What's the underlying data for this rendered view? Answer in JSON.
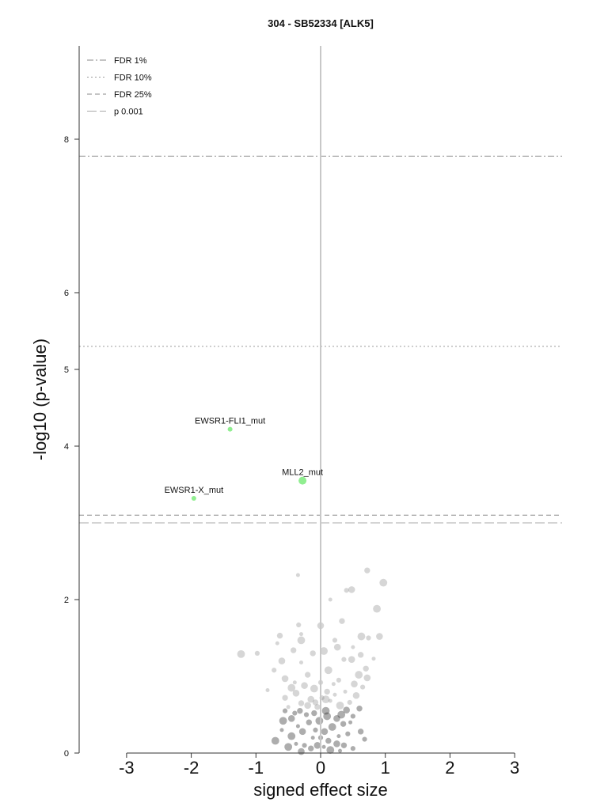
{
  "chart_data": {
    "type": "scatter",
    "title": "304 - SB52334 [ALK5]",
    "xlabel": "signed effect size",
    "ylabel": "-log10 (p-value)",
    "xlim": [
      -3.7,
      3.7
    ],
    "ylim": [
      0,
      9.2
    ],
    "xticks": [
      -3,
      -2,
      -1,
      0,
      1,
      2,
      3
    ],
    "xtick_labels": [
      "-3",
      "-2",
      "-1",
      "0",
      "1",
      "2",
      "3"
    ],
    "yticks": [
      0,
      2,
      4,
      5,
      6,
      8
    ],
    "ytick_labels": [
      "0",
      "2",
      "4",
      "5",
      "6",
      "8"
    ],
    "grid": false,
    "legend_position": "top-left",
    "legend": [
      {
        "label": "FDR 1%",
        "style": "dashdot",
        "y": 7.78
      },
      {
        "label": "FDR 10%",
        "style": "dotted",
        "y": 5.3
      },
      {
        "label": "FDR 25%",
        "style": "dashed",
        "y": 3.1
      },
      {
        "label": "p 0.001",
        "style": "longdash",
        "y": 3.0
      }
    ],
    "highlighted_points": [
      {
        "label": "EWSR1-FLI1_mut",
        "x": -1.4,
        "y": 4.22,
        "size": 3
      },
      {
        "label": "MLL2_mut",
        "x": -0.28,
        "y": 3.55,
        "size": 5
      },
      {
        "label": "EWSR1-X_mut",
        "x": -1.96,
        "y": 3.32,
        "size": 3
      }
    ],
    "background_points": [
      [
        -0.35,
        2.32
      ],
      [
        0.72,
        2.38
      ],
      [
        0.97,
        2.22
      ],
      [
        0.4,
        2.12
      ],
      [
        0.48,
        2.13
      ],
      [
        0.15,
        2.0
      ],
      [
        0.33,
        1.72
      ],
      [
        0.87,
        1.88
      ],
      [
        -0.34,
        1.67
      ],
      [
        0.0,
        1.66
      ],
      [
        -0.3,
        1.55
      ],
      [
        -0.63,
        1.53
      ],
      [
        -0.3,
        1.47
      ],
      [
        0.22,
        1.47
      ],
      [
        0.26,
        1.38
      ],
      [
        -0.67,
        1.43
      ],
      [
        -0.42,
        1.34
      ],
      [
        0.63,
        1.52
      ],
      [
        0.74,
        1.5
      ],
      [
        0.91,
        1.52
      ],
      [
        0.5,
        1.38
      ],
      [
        0.62,
        1.28
      ],
      [
        -1.23,
        1.29
      ],
      [
        -0.98,
        1.3
      ],
      [
        -0.6,
        1.2
      ],
      [
        -0.3,
        1.18
      ],
      [
        -0.12,
        1.3
      ],
      [
        0.05,
        1.33
      ],
      [
        0.36,
        1.22
      ],
      [
        0.48,
        1.22
      ],
      [
        0.82,
        1.23
      ],
      [
        0.7,
        1.1
      ],
      [
        0.59,
        1.02
      ],
      [
        -0.72,
        1.08
      ],
      [
        -0.55,
        0.97
      ],
      [
        -0.4,
        0.92
      ],
      [
        -0.2,
        1.02
      ],
      [
        0.12,
        1.08
      ],
      [
        0.28,
        0.95
      ],
      [
        0.72,
        0.98
      ],
      [
        -0.82,
        0.82
      ],
      [
        -0.55,
        0.72
      ],
      [
        -0.45,
        0.85
      ],
      [
        0.65,
        0.86
      ],
      [
        0.55,
        0.75
      ],
      [
        -0.5,
        0.6
      ],
      [
        0.6,
        0.58
      ],
      [
        -0.58,
        0.42
      ],
      [
        0.5,
        0.48
      ],
      [
        -0.38,
        0.78
      ],
      [
        0.38,
        0.8
      ],
      [
        -0.3,
        0.65
      ],
      [
        0.3,
        0.62
      ],
      [
        0.45,
        0.66
      ],
      [
        -0.25,
        0.88
      ],
      [
        0.2,
        0.9
      ],
      [
        0.1,
        0.8
      ],
      [
        -0.1,
        0.84
      ],
      [
        0.02,
        0.72
      ],
      [
        -0.15,
        0.7
      ],
      [
        0.15,
        0.68
      ],
      [
        -0.05,
        0.6
      ],
      [
        0.08,
        0.55
      ],
      [
        -0.22,
        0.5
      ],
      [
        0.25,
        0.45
      ],
      [
        -0.35,
        0.35
      ],
      [
        0.35,
        0.38
      ],
      [
        -0.45,
        0.22
      ],
      [
        0.42,
        0.25
      ],
      [
        -0.28,
        0.28
      ],
      [
        0.28,
        0.22
      ],
      [
        -0.18,
        0.4
      ],
      [
        0.18,
        0.34
      ],
      [
        -0.08,
        0.3
      ],
      [
        0.06,
        0.28
      ],
      [
        -0.12,
        0.2
      ],
      [
        0.12,
        0.16
      ],
      [
        -0.02,
        0.42
      ],
      [
        0.0,
        0.2
      ],
      [
        -0.05,
        0.1
      ],
      [
        0.05,
        0.08
      ],
      [
        -0.15,
        0.06
      ],
      [
        0.15,
        0.04
      ],
      [
        -0.25,
        0.1
      ],
      [
        0.25,
        0.12
      ],
      [
        -0.38,
        0.12
      ],
      [
        0.36,
        0.1
      ],
      [
        -0.5,
        0.08
      ],
      [
        0.5,
        0.06
      ],
      [
        -0.3,
        0.02
      ],
      [
        0.3,
        0.03
      ],
      [
        -0.1,
        0.52
      ],
      [
        0.1,
        0.48
      ],
      [
        -0.4,
        0.52
      ],
      [
        0.4,
        0.56
      ],
      [
        -0.6,
        0.3
      ],
      [
        0.62,
        0.28
      ],
      [
        -0.7,
        0.16
      ],
      [
        0.68,
        0.18
      ],
      [
        -0.2,
        0.62
      ],
      [
        0.22,
        0.76
      ],
      [
        -0.32,
        0.55
      ],
      [
        0.32,
        0.5
      ],
      [
        0.0,
        0.92
      ],
      [
        -0.45,
        0.45
      ],
      [
        0.46,
        0.4
      ],
      [
        -0.08,
        0.66
      ],
      [
        0.08,
        0.7
      ],
      [
        -0.55,
        0.55
      ],
      [
        0.52,
        0.9
      ]
    ]
  }
}
